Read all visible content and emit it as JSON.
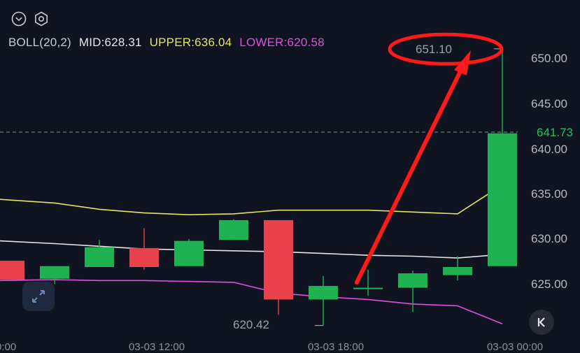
{
  "toolbar": {
    "icons": [
      "chevron-down-icon",
      "settings-hexagon-icon"
    ]
  },
  "indicator": {
    "name": "BOLL(20,2)",
    "mid": "MID:628.31",
    "upper": "UPPER:636.04",
    "lower": "LOWER:620.58",
    "colors": {
      "mid": "#e6e6e6",
      "upper": "#e8e35c",
      "lower": "#e04ee0"
    }
  },
  "price_axis": {
    "ticks": [
      "650.00",
      "645.00",
      "640.00",
      "635.00",
      "630.00",
      "625.00"
    ],
    "current_price": "641.73"
  },
  "annotations": {
    "high_label": "651.10",
    "low_label": "620.42",
    "annotation_color": "#ff1a1a"
  },
  "time_axis": {
    "labels": [
      "0:00",
      "03-03 12:00",
      "03-03 18:00",
      "03-03 00:00"
    ]
  },
  "colors": {
    "up": "#1fb250",
    "down": "#e8414b",
    "background": "#0f1420"
  },
  "chart_data": {
    "type": "candlestick",
    "ylim": [
      620,
      652
    ],
    "candles": [
      {
        "open": 627.6,
        "close": 625.5,
        "high": 627.6,
        "low": 625.5
      },
      {
        "open": 625.6,
        "close": 627.0,
        "high": 627.0,
        "low": 625.0
      },
      {
        "open": 626.9,
        "close": 629.1,
        "high": 629.9,
        "low": 626.9
      },
      {
        "open": 629.0,
        "close": 626.9,
        "high": 631.2,
        "low": 626.6
      },
      {
        "open": 627.0,
        "close": 629.8,
        "high": 630.0,
        "low": 627.0
      },
      {
        "open": 629.9,
        "close": 632.1,
        "high": 632.2,
        "low": 629.9
      },
      {
        "open": 632.1,
        "close": 623.3,
        "high": 632.1,
        "low": 621.6
      },
      {
        "open": 623.3,
        "close": 624.8,
        "high": 625.9,
        "low": 620.42
      },
      {
        "open": 624.6,
        "close": 624.6,
        "high": 626.6,
        "low": 623.7
      },
      {
        "open": 624.6,
        "close": 626.2,
        "high": 626.5,
        "low": 621.9
      },
      {
        "open": 626.0,
        "close": 626.9,
        "high": 628.1,
        "low": 625.4
      },
      {
        "open": 627.0,
        "close": 641.73,
        "high": 651.1,
        "low": 627.0
      }
    ],
    "boll_upper": [
      634.4,
      634.0,
      633.3,
      632.9,
      632.7,
      632.8,
      633.2,
      633.2,
      633.2,
      633.0,
      632.8,
      636.0
    ],
    "boll_mid": [
      629.8,
      629.5,
      629.2,
      628.9,
      628.8,
      628.7,
      628.6,
      628.4,
      628.2,
      628.1,
      627.9,
      628.3
    ],
    "boll_lower": [
      625.4,
      625.5,
      625.4,
      625.4,
      625.3,
      625.2,
      624.0,
      623.6,
      623.3,
      622.8,
      622.6,
      620.6
    ]
  }
}
